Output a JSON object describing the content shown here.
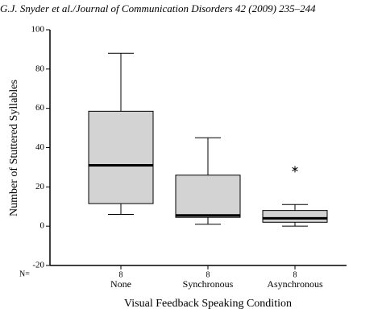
{
  "header": "G.J. Snyder et al./Journal of Communication Disorders 42 (2009) 235–244",
  "chart_data": {
    "type": "box",
    "ylabel": "Number of Stuttered Syllables",
    "xlabel": "Visual Feedback Speaking Condition",
    "categories": [
      "None",
      "Synchronous",
      "Asynchronous"
    ],
    "n_label": "N=",
    "n": [
      8,
      8,
      8
    ],
    "ylim": [
      -20,
      100
    ],
    "yticks": [
      -20,
      0,
      20,
      40,
      60,
      80,
      100
    ],
    "color": "#d3d3d3",
    "boxes": [
      {
        "whisker_low": 6,
        "q1": 11.5,
        "median": 31,
        "q3": 58.5,
        "whisker_high": 88,
        "outliers": []
      },
      {
        "whisker_low": 1,
        "q1": 4.5,
        "median": 5.5,
        "q3": 26,
        "whisker_high": 45,
        "outliers": []
      },
      {
        "whisker_low": 0,
        "q1": 2,
        "median": 4,
        "q3": 8,
        "whisker_high": 11,
        "outliers": [
          29
        ]
      }
    ]
  }
}
